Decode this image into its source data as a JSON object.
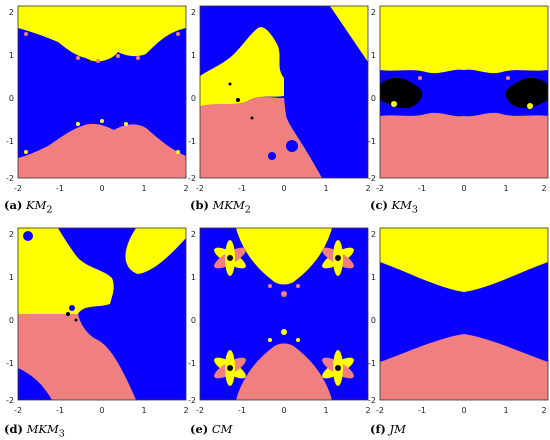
{
  "colors": {
    "blue": "#0a00ff",
    "yellow": "#ffff00",
    "salmon": "#f08080",
    "black": "#000000"
  },
  "axis": {
    "x_ticks": [
      "-2",
      "-1",
      "0",
      "1",
      "2"
    ],
    "y_ticks": [
      "2",
      "1",
      "0",
      "-1",
      "-2"
    ]
  },
  "panels": [
    {
      "id": "a",
      "caption_letter": "(a)",
      "caption_name": "KM",
      "caption_sub": "2"
    },
    {
      "id": "b",
      "caption_letter": "(b)",
      "caption_name": "MKM",
      "caption_sub": "2"
    },
    {
      "id": "c",
      "caption_letter": "(c)",
      "caption_name": "KM",
      "caption_sub": "3"
    },
    {
      "id": "d",
      "caption_letter": "(d)",
      "caption_name": "MKM",
      "caption_sub": "3"
    },
    {
      "id": "e",
      "caption_letter": "(e)",
      "caption_name": "CM",
      "caption_sub": ""
    },
    {
      "id": "f",
      "caption_letter": "(f)",
      "caption_name": "JM",
      "caption_sub": ""
    }
  ]
}
